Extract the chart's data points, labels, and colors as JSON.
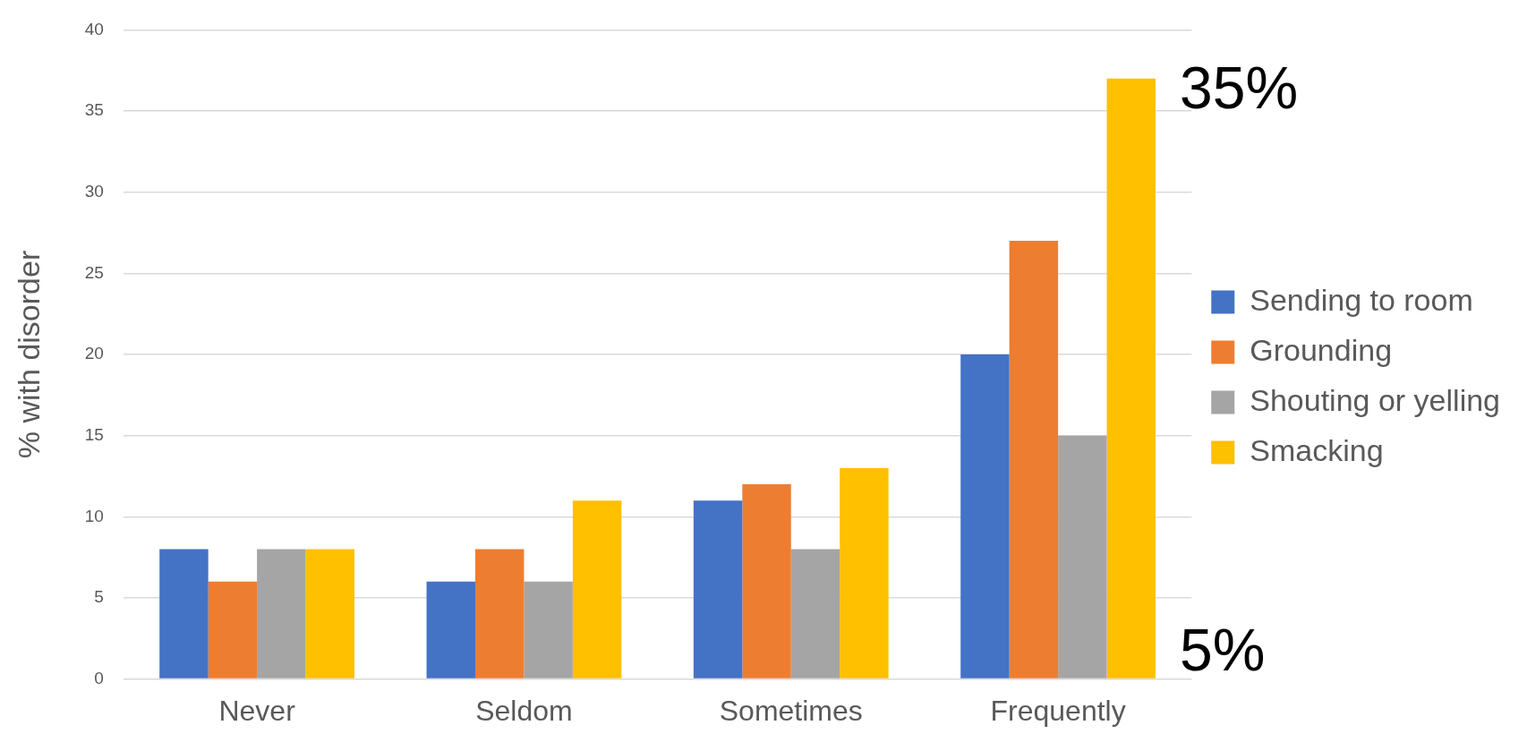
{
  "chart_data": {
    "type": "bar",
    "ylabel": "% with disorder",
    "categories": [
      "Never",
      "Seldom",
      "Sometimes",
      "Frequently"
    ],
    "series": [
      {
        "name": "Sending to room",
        "color": "#4472c4",
        "values": [
          8,
          6,
          11,
          20
        ]
      },
      {
        "name": "Grounding",
        "color": "#ed7d31",
        "values": [
          6,
          8,
          12,
          27
        ]
      },
      {
        "name": "Shouting or yelling",
        "color": "#a5a5a5",
        "values": [
          8,
          6,
          8,
          15
        ]
      },
      {
        "name": "Smacking",
        "color": "#ffc000",
        "values": [
          8,
          11,
          13,
          37
        ]
      }
    ],
    "ylim": [
      0,
      40
    ],
    "yticks": [
      0,
      5,
      10,
      15,
      20,
      25,
      30,
      35,
      40
    ],
    "grid": "y",
    "legend": "right",
    "annotations": [
      "35%",
      "5%"
    ]
  }
}
